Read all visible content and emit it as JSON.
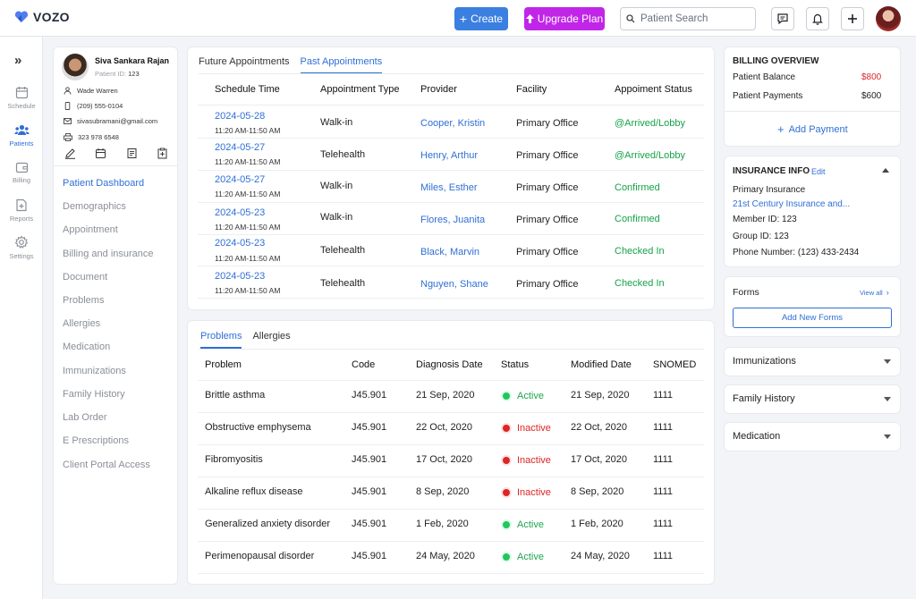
{
  "app": {
    "logo_text": "VOZO",
    "create_label": "Create",
    "upgrade_label": "Upgrade Plan",
    "search_placeholder": "Patient Search"
  },
  "rail": {
    "items": [
      {
        "label": "Schedule"
      },
      {
        "label": "Patients"
      },
      {
        "label": "Billing"
      },
      {
        "label": "Reports"
      },
      {
        "label": "Settings"
      }
    ]
  },
  "patient": {
    "name": "Siva Sankara Rajan",
    "id_label": "Patient ID:",
    "id_value": "123",
    "contact_name": "Wade Warren",
    "phone": "(209) 555-0104",
    "email": "sivasubramani@gmail.com",
    "fax": "323 978 6548"
  },
  "patient_nav": [
    "Patient Dashboard",
    "Demographics",
    "Appointment",
    "Billing and insurance",
    "Document",
    "Problems",
    "Allergies",
    "Medication",
    "Immunizations",
    "Family History",
    "Lab Order",
    "E Prescriptions",
    "Client Portal Access"
  ],
  "appointments": {
    "tabs": [
      "Future Appointments",
      "Past Appointments"
    ],
    "headers": [
      "Schedule Time",
      "Appointment Type",
      "Provider",
      "Facility",
      "Appoiment Status"
    ],
    "rows": [
      {
        "date": "2024-05-28",
        "time": "11:20 AM-11:50 AM",
        "type": "Walk-in",
        "provider": "Cooper, Kristin",
        "facility": "Primary Office",
        "status": "@Arrived/Lobby"
      },
      {
        "date": "2024-05-27",
        "time": "11:20 AM-11:50 AM",
        "type": "Telehealth",
        "provider": "Henry, Arthur",
        "facility": "Primary Office",
        "status": "@Arrived/Lobby"
      },
      {
        "date": "2024-05-27",
        "time": "11:20 AM-11:50 AM",
        "type": "Walk-in",
        "provider": "Miles, Esther",
        "facility": "Primary Office",
        "status": "Confirmed"
      },
      {
        "date": "2024-05-23",
        "time": "11:20 AM-11:50 AM",
        "type": "Walk-in",
        "provider": "Flores, Juanita",
        "facility": "Primary Office",
        "status": "Confirmed"
      },
      {
        "date": "2024-05-23",
        "time": "11:20 AM-11:50 AM",
        "type": "Telehealth",
        "provider": "Black, Marvin",
        "facility": "Primary Office",
        "status": "Checked In"
      },
      {
        "date": "2024-05-23",
        "time": "11:20 AM-11:50 AM",
        "type": "Telehealth",
        "provider": "Nguyen, Shane",
        "facility": "Primary Office",
        "status": "Checked In"
      }
    ]
  },
  "problems": {
    "tabs": [
      "Problems",
      "Allergies"
    ],
    "headers": [
      "Problem",
      "Code",
      "Diagnosis Date",
      "Status",
      "Modified Date",
      "SNOMED"
    ],
    "rows": [
      {
        "problem": "Brittle asthma",
        "code": "J45.901",
        "diagnosis": "21 Sep, 2020",
        "status": "Active",
        "modified": "21 Sep, 2020",
        "snomed": "1111"
      },
      {
        "problem": "Obstructive emphysema",
        "code": "J45.901",
        "diagnosis": "22 Oct, 2020",
        "status": "Inactive",
        "modified": "22 Oct, 2020",
        "snomed": "1111"
      },
      {
        "problem": "Fibromyositis",
        "code": "J45.901",
        "diagnosis": "17 Oct, 2020",
        "status": "Inactive",
        "modified": "17 Oct, 2020",
        "snomed": "1111"
      },
      {
        "problem": "Alkaline reflux disease",
        "code": "J45.901",
        "diagnosis": "8 Sep, 2020",
        "status": "Inactive",
        "modified": "8 Sep, 2020",
        "snomed": "1111"
      },
      {
        "problem": "Generalized anxiety disorder",
        "code": "J45.901",
        "diagnosis": "1 Feb, 2020",
        "status": "Active",
        "modified": "1 Feb, 2020",
        "snomed": "1111"
      },
      {
        "problem": "Perimenopausal disorder",
        "code": "J45.901",
        "diagnosis": "24 May, 2020",
        "status": "Active",
        "modified": "24 May, 2020",
        "snomed": "1111"
      }
    ]
  },
  "billing": {
    "title": "BILLING OVERVIEW",
    "balance_label": "Patient Balance",
    "balance_value": "$800",
    "payments_label": "Patient Payments",
    "payments_value": "$600",
    "add_payment_label": "Add Payment"
  },
  "insurance": {
    "title": "INSURANCE INFO",
    "edit_label": "Edit",
    "primary_label": "Primary Insurance",
    "company": "21st Century Insurance and...",
    "member_id": "Member ID: 123",
    "group_id": "Group ID: 123",
    "phone": "Phone Number: (123) 433-2434"
  },
  "forms": {
    "title": "Forms",
    "view_all_label": "View all",
    "add_label": "Add New Forms"
  },
  "accordions": [
    "Immunizations",
    "Family History",
    "Medication"
  ],
  "colors": {
    "primary": "#2f6fd6",
    "create_button": "#3b7fe0",
    "upgrade_button": "#c126e8",
    "active_green": "#16a34a",
    "inactive_red": "#dc2626",
    "balance_red": "#dc2626"
  }
}
